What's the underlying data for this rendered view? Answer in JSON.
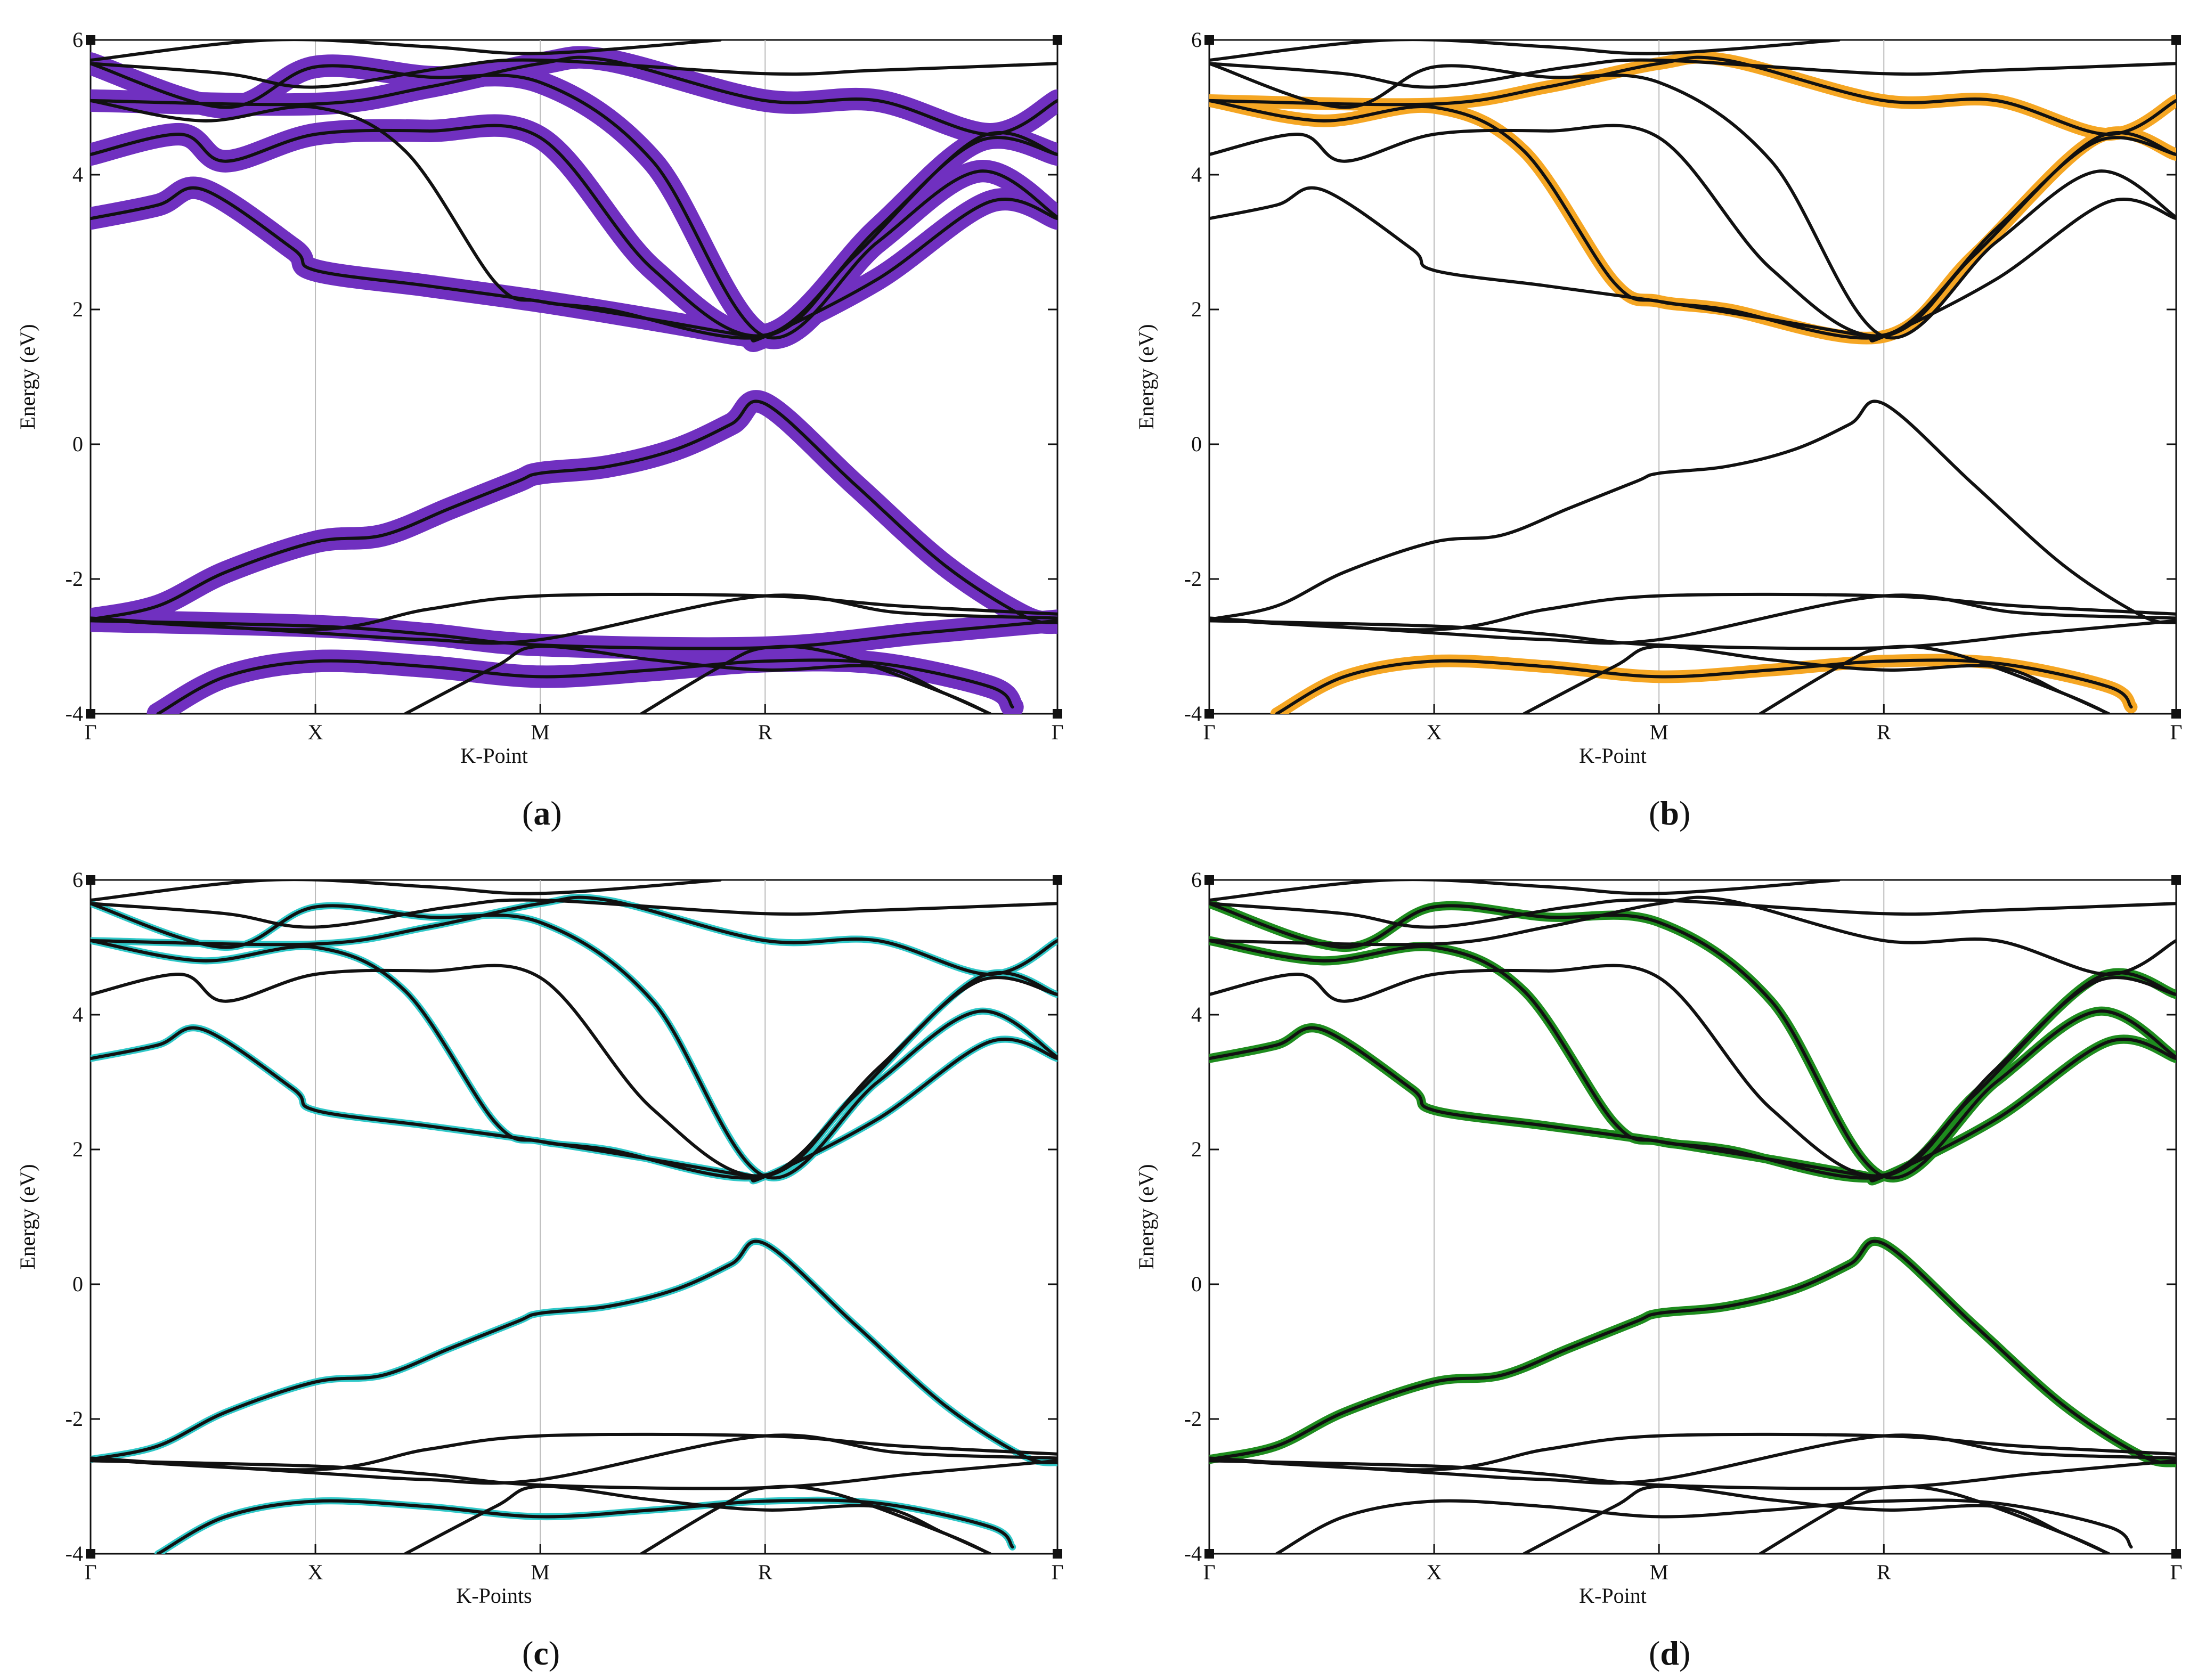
{
  "chart_data": [
    {
      "type": "line",
      "subtype": "band-structure",
      "panel_label": "a",
      "xlabel": "K-Point",
      "ylabel": "Energy (eV)",
      "ylim": [
        -4,
        6
      ],
      "yticks": [
        "6",
        "4",
        "2",
        "0",
        "-2",
        "-4"
      ],
      "kpoints": [
        "Γ",
        "X",
        "M",
        "R",
        "Γ"
      ],
      "highlight_color": "#7030c0",
      "highlight_width_scale": 3.2,
      "highlight_bands": [
        0,
        1,
        2,
        5,
        6,
        7,
        9
      ]
    },
    {
      "type": "line",
      "subtype": "band-structure",
      "panel_label": "b",
      "xlabel": "K-Point",
      "ylabel": "Energy (eV)",
      "ylim": [
        -4,
        6
      ],
      "yticks": [
        "6",
        "4",
        "2",
        "0",
        "-2",
        "-4"
      ],
      "kpoints": [
        "Γ",
        "X",
        "M",
        "R",
        "Γ"
      ],
      "highlight_color": "#f5a623",
      "highlight_width_scale": 1.8,
      "highlight_bands": [
        0,
        8,
        9
      ]
    },
    {
      "type": "line",
      "subtype": "band-structure",
      "panel_label": "c",
      "xlabel": "K-Points",
      "ylabel": "Energy (eV)",
      "ylim": [
        -4,
        6
      ],
      "yticks": [
        "6",
        "4",
        "2",
        "0",
        "-2",
        "-4"
      ],
      "kpoints": [
        "Γ",
        "X",
        "M",
        "R",
        "Γ"
      ],
      "highlight_color": "#30c8c8",
      "highlight_width_scale": 1.0,
      "highlight_bands": [
        0,
        1,
        5,
        6,
        8,
        9
      ]
    },
    {
      "type": "line",
      "subtype": "band-structure",
      "panel_label": "d",
      "xlabel": "K-Point",
      "ylabel": "Energy (eV)",
      "ylim": [
        -4,
        6
      ],
      "yticks": [
        "6",
        "4",
        "2",
        "0",
        "-2",
        "-4"
      ],
      "kpoints": [
        "Γ",
        "X",
        "M",
        "R",
        "Γ"
      ],
      "highlight_color": "#1e8c1e",
      "highlight_width_scale": 1.3,
      "highlight_bands": [
        1,
        5,
        6,
        8
      ]
    }
  ],
  "bands": {
    "k": [
      0,
      1,
      2,
      3,
      4.3
    ],
    "list": [
      {
        "id": 0,
        "name": "band-deep-lower",
        "points": [
          [
            0.3,
            -4.0
          ],
          [
            0.6,
            -3.45
          ],
          [
            1.0,
            -3.22
          ],
          [
            1.5,
            -3.3
          ],
          [
            2.0,
            -3.45
          ],
          [
            2.5,
            -3.35
          ],
          [
            3.0,
            -3.22
          ],
          [
            3.5,
            -3.25
          ],
          [
            4.0,
            -3.6
          ],
          [
            4.1,
            -3.9
          ]
        ]
      },
      {
        "id": 1,
        "name": "band-dispersive-valence",
        "points": [
          [
            0,
            -2.6
          ],
          [
            0.3,
            -2.4
          ],
          [
            0.6,
            -1.9
          ],
          [
            1.0,
            -1.45
          ],
          [
            1.3,
            -1.35
          ],
          [
            1.6,
            -0.95
          ],
          [
            1.9,
            -0.55
          ],
          [
            2.0,
            -0.43
          ],
          [
            2.3,
            -0.33
          ],
          [
            2.6,
            -0.08
          ],
          [
            2.85,
            0.3
          ],
          [
            3.0,
            0.6
          ],
          [
            3.4,
            -0.6
          ],
          [
            3.8,
            -1.8
          ],
          [
            4.15,
            -2.55
          ],
          [
            4.3,
            -2.65
          ]
        ]
      },
      {
        "id": 2,
        "name": "band-flat-a",
        "points": [
          [
            0,
            -2.62
          ],
          [
            1.0,
            -2.7
          ],
          [
            1.5,
            -2.82
          ],
          [
            2.0,
            -2.98
          ],
          [
            3.0,
            -3.02
          ],
          [
            3.7,
            -2.8
          ],
          [
            4.3,
            -2.62
          ]
        ]
      },
      {
        "id": 3,
        "name": "band-flat-b",
        "points": [
          [
            0,
            -2.6
          ],
          [
            1.0,
            -2.75
          ],
          [
            1.5,
            -2.45
          ],
          [
            2.0,
            -2.25
          ],
          [
            3.0,
            -2.25
          ],
          [
            3.6,
            -2.4
          ],
          [
            4.3,
            -2.52
          ]
        ]
      },
      {
        "id": 4,
        "name": "band-flat-c",
        "points": [
          [
            0,
            -2.58
          ],
          [
            1.0,
            -2.8
          ],
          [
            1.5,
            -2.9
          ],
          [
            2.0,
            -2.9
          ],
          [
            3.0,
            -2.25
          ],
          [
            3.6,
            -2.5
          ],
          [
            4.3,
            -2.58
          ]
        ]
      },
      {
        "id": 5,
        "name": "band-conduction-min",
        "points": [
          [
            0,
            3.35
          ],
          [
            0.3,
            3.55
          ],
          [
            0.5,
            3.78
          ],
          [
            0.9,
            2.9
          ],
          [
            1.0,
            2.58
          ],
          [
            1.5,
            2.35
          ],
          [
            2.0,
            2.12
          ],
          [
            2.5,
            1.85
          ],
          [
            2.9,
            1.62
          ],
          [
            3.0,
            1.6
          ],
          [
            3.5,
            2.45
          ],
          [
            4.0,
            3.6
          ],
          [
            4.3,
            3.35
          ]
        ]
      },
      {
        "id": 6,
        "name": "band-conduction-x",
        "points": [
          [
            0,
            5.65
          ],
          [
            0.6,
            5.0
          ],
          [
            1.0,
            5.6
          ],
          [
            1.5,
            5.45
          ],
          [
            2.0,
            5.37
          ],
          [
            2.5,
            4.2
          ],
          [
            3.0,
            1.6
          ],
          [
            3.5,
            3.0
          ],
          [
            3.95,
            4.05
          ],
          [
            4.3,
            3.37
          ]
        ]
      },
      {
        "id": 7,
        "name": "band-upper-a",
        "points": [
          [
            0,
            4.3
          ],
          [
            0.4,
            4.6
          ],
          [
            0.6,
            4.2
          ],
          [
            1.0,
            4.6
          ],
          [
            1.5,
            4.65
          ],
          [
            2.0,
            4.55
          ],
          [
            2.5,
            2.6
          ],
          [
            3.0,
            1.62
          ],
          [
            3.5,
            3.2
          ],
          [
            3.95,
            4.5
          ],
          [
            4.3,
            4.3
          ]
        ]
      },
      {
        "id": 8,
        "name": "band-upper-b",
        "points": [
          [
            0,
            5.1
          ],
          [
            0.5,
            4.8
          ],
          [
            1.0,
            5.0
          ],
          [
            1.4,
            4.35
          ],
          [
            1.8,
            2.4
          ],
          [
            2.0,
            2.12
          ],
          [
            2.3,
            2.0
          ],
          [
            3.0,
            1.6
          ],
          [
            3.4,
            2.8
          ],
          [
            3.95,
            4.55
          ],
          [
            4.3,
            4.3
          ]
        ]
      },
      {
        "id": 9,
        "name": "band-upper-c",
        "points": [
          [
            0,
            5.1
          ],
          [
            1.0,
            5.05
          ],
          [
            1.5,
            5.3
          ],
          [
            2.0,
            5.65
          ],
          [
            2.3,
            5.7
          ],
          [
            3.0,
            5.1
          ],
          [
            3.5,
            5.1
          ],
          [
            4.0,
            4.6
          ],
          [
            4.3,
            5.1
          ]
        ]
      },
      {
        "id": 10,
        "name": "band-upper-d",
        "points": [
          [
            0,
            5.65
          ],
          [
            0.6,
            5.5
          ],
          [
            1.0,
            5.3
          ],
          [
            1.6,
            5.6
          ],
          [
            2.0,
            5.7
          ],
          [
            3.0,
            5.5
          ],
          [
            3.5,
            5.55
          ],
          [
            4.3,
            5.65
          ]
        ]
      },
      {
        "id": 11,
        "name": "band-deep-b",
        "points": [
          [
            1.4,
            -4.0
          ],
          [
            1.8,
            -3.3
          ],
          [
            2.0,
            -3.0
          ],
          [
            2.5,
            -3.2
          ],
          [
            3.0,
            -3.35
          ],
          [
            3.5,
            -3.3
          ],
          [
            3.8,
            -3.7
          ],
          [
            4.0,
            -4.0
          ]
        ]
      },
      {
        "id": 12,
        "name": "band-deep-c",
        "points": [
          [
            2.45,
            -4.0
          ],
          [
            2.8,
            -3.3
          ],
          [
            3.0,
            -3.02
          ],
          [
            3.3,
            -3.1
          ],
          [
            3.8,
            -3.7
          ],
          [
            4.0,
            -4.0
          ]
        ]
      },
      {
        "id": 13,
        "name": "band-high-e",
        "points": [
          [
            0,
            5.7
          ],
          [
            0.8,
            6.0
          ],
          [
            1.5,
            5.9
          ],
          [
            2.0,
            5.8
          ],
          [
            2.8,
            6.0
          ]
        ]
      }
    ]
  }
}
